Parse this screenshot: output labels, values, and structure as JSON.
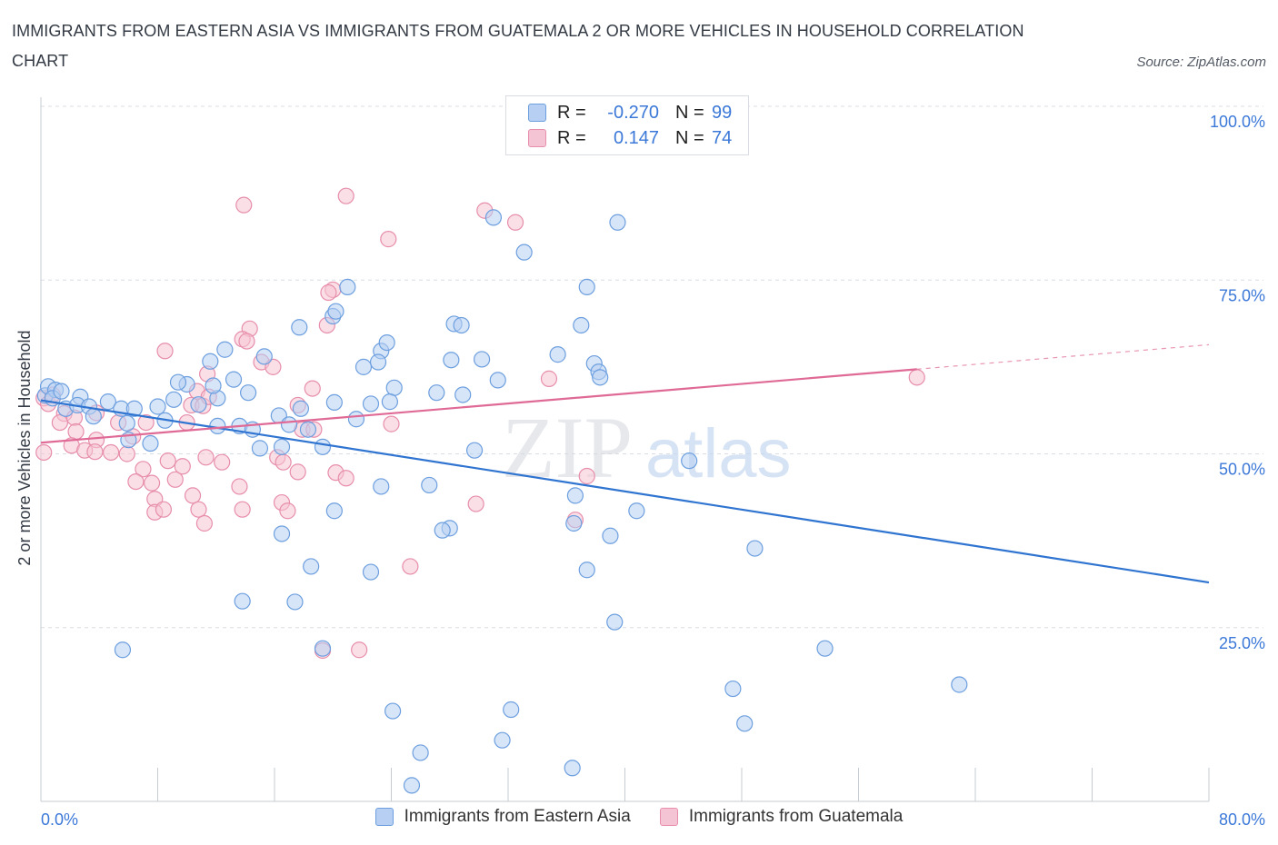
{
  "title": "IMMIGRANTS FROM EASTERN ASIA VS IMMIGRANTS FROM GUATEMALA 2 OR MORE VEHICLES IN HOUSEHOLD CORRELATION CHART",
  "source": "Source: ZipAtlas.com",
  "watermark": {
    "zip": "ZIP",
    "atlas": "atlas"
  },
  "legend_top": {
    "rows": [
      {
        "r_label": "R =",
        "r_value": "-0.270",
        "n_label": "N =",
        "n_value": "99"
      },
      {
        "r_label": "R =",
        "r_value": "0.147",
        "n_label": "N =",
        "n_value": "74"
      }
    ]
  },
  "colors": {
    "blue_fill": "#b6cff2",
    "blue_stroke": "#6d9fdf",
    "blue_line": "#2f74d0",
    "pink_fill": "#f5c4d4",
    "pink_stroke": "#e78eab",
    "pink_line": "#e06a96",
    "axis_label": "#3b78d8",
    "grid": "#d8dde4"
  },
  "chart_data": {
    "type": "scatter",
    "title": "IMMIGRANTS FROM EASTERN ASIA VS IMMIGRANTS FROM GUATEMALA 2 OR MORE VEHICLES IN HOUSEHOLD CORRELATION CHART",
    "xlabel": "",
    "ylabel": "2 or more Vehicles in Household",
    "xlim": [
      0,
      80
    ],
    "ylim": [
      0,
      100
    ],
    "x_tick_labels": [
      "0.0%",
      "80.0%"
    ],
    "y_tick_labels": [
      "100.0%",
      "75.0%",
      "50.0%",
      "25.0%"
    ],
    "y_ticks": [
      100,
      75,
      50,
      25
    ],
    "grid": true,
    "legend_placement": "bottom",
    "series": [
      {
        "name": "Immigrants from Eastern Asia",
        "R": -0.27,
        "N": 99,
        "trend": {
          "x": [
            0,
            80
          ],
          "y": [
            57.7,
            31.5
          ],
          "dashed_from_x": null
        },
        "points": [
          [
            0.3,
            58.4
          ],
          [
            0.5,
            59.7
          ],
          [
            1.0,
            59.2
          ],
          [
            0.8,
            58.0
          ],
          [
            1.4,
            59.0
          ],
          [
            2.7,
            58.2
          ],
          [
            1.7,
            56.5
          ],
          [
            2.5,
            57.0
          ],
          [
            3.3,
            56.8
          ],
          [
            4.6,
            57.5
          ],
          [
            5.5,
            56.5
          ],
          [
            3.6,
            55.4
          ],
          [
            6.4,
            56.5
          ],
          [
            5.9,
            54.4
          ],
          [
            8.0,
            56.8
          ],
          [
            9.1,
            57.8
          ],
          [
            8.5,
            54.8
          ],
          [
            7.5,
            51.5
          ],
          [
            6.0,
            52.0
          ],
          [
            10.0,
            60.0
          ],
          [
            10.8,
            57.1
          ],
          [
            12.1,
            58.0
          ],
          [
            11.8,
            59.8
          ],
          [
            13.2,
            60.7
          ],
          [
            14.2,
            58.8
          ],
          [
            9.4,
            60.3
          ],
          [
            11.6,
            63.3
          ],
          [
            12.6,
            65.0
          ],
          [
            15.3,
            64.0
          ],
          [
            12.1,
            54.0
          ],
          [
            13.6,
            54.0
          ],
          [
            14.5,
            53.5
          ],
          [
            16.3,
            55.5
          ],
          [
            17.8,
            56.5
          ],
          [
            16.5,
            51.0
          ],
          [
            15.0,
            50.8
          ],
          [
            17.0,
            54.2
          ],
          [
            18.3,
            53.5
          ],
          [
            20.1,
            57.4
          ],
          [
            21.6,
            55.0
          ],
          [
            22.6,
            57.2
          ],
          [
            24.2,
            59.5
          ],
          [
            23.9,
            57.5
          ],
          [
            19.3,
            51.0
          ],
          [
            22.1,
            62.5
          ],
          [
            23.3,
            64.8
          ],
          [
            23.7,
            66.0
          ],
          [
            23.1,
            63.2
          ],
          [
            20.0,
            69.8
          ],
          [
            17.7,
            68.2
          ],
          [
            20.2,
            70.5
          ],
          [
            21.0,
            74.0
          ],
          [
            28.3,
            68.7
          ],
          [
            28.8,
            68.5
          ],
          [
            28.1,
            63.5
          ],
          [
            28.9,
            58.5
          ],
          [
            27.1,
            58.8
          ],
          [
            30.2,
            63.6
          ],
          [
            31.3,
            60.6
          ],
          [
            29.7,
            50.5
          ],
          [
            37.9,
            63.0
          ],
          [
            37.0,
            68.5
          ],
          [
            35.4,
            64.3
          ],
          [
            38.2,
            61.8
          ],
          [
            33.1,
            79.0
          ],
          [
            31.0,
            84.0
          ],
          [
            37.4,
            74.0
          ],
          [
            38.3,
            61.0
          ],
          [
            39.5,
            83.3
          ],
          [
            44.4,
            49.0
          ],
          [
            36.6,
            44.0
          ],
          [
            40.8,
            41.8
          ],
          [
            39.0,
            38.2
          ],
          [
            36.5,
            40.0
          ],
          [
            37.4,
            33.3
          ],
          [
            28.0,
            39.3
          ],
          [
            27.5,
            39.0
          ],
          [
            26.6,
            45.5
          ],
          [
            23.3,
            45.3
          ],
          [
            22.6,
            33.0
          ],
          [
            20.1,
            41.8
          ],
          [
            18.5,
            33.8
          ],
          [
            16.5,
            38.5
          ],
          [
            13.8,
            28.8
          ],
          [
            17.4,
            28.7
          ],
          [
            5.6,
            21.8
          ],
          [
            19.3,
            22.0
          ],
          [
            24.1,
            13.0
          ],
          [
            26.0,
            7.0
          ],
          [
            25.4,
            2.3
          ],
          [
            32.2,
            13.2
          ],
          [
            31.6,
            8.8
          ],
          [
            36.4,
            4.8
          ],
          [
            39.3,
            25.8
          ],
          [
            48.9,
            36.4
          ],
          [
            53.7,
            22.0
          ],
          [
            48.2,
            11.2
          ],
          [
            47.4,
            16.2
          ],
          [
            62.9,
            16.8
          ]
        ]
      },
      {
        "name": "Immigrants from Guatemala",
        "R": 0.147,
        "N": 74,
        "trend": {
          "x": [
            0,
            80
          ],
          "y": [
            51.6,
            65.7
          ],
          "dashed_from_x": 60
        },
        "points": [
          [
            0.2,
            58.0
          ],
          [
            0.5,
            57.2
          ],
          [
            0.8,
            58.5
          ],
          [
            1.6,
            55.8
          ],
          [
            1.3,
            54.5
          ],
          [
            2.3,
            55.2
          ],
          [
            2.4,
            53.2
          ],
          [
            2.1,
            51.2
          ],
          [
            3.8,
            55.9
          ],
          [
            3.8,
            52.0
          ],
          [
            3.0,
            50.5
          ],
          [
            3.7,
            50.3
          ],
          [
            4.8,
            50.2
          ],
          [
            5.3,
            54.5
          ],
          [
            5.9,
            50.0
          ],
          [
            6.3,
            52.5
          ],
          [
            7.2,
            54.5
          ],
          [
            7.0,
            47.8
          ],
          [
            7.6,
            45.8
          ],
          [
            6.5,
            46.0
          ],
          [
            7.8,
            43.5
          ],
          [
            7.8,
            41.6
          ],
          [
            8.7,
            49.0
          ],
          [
            9.7,
            48.2
          ],
          [
            9.2,
            46.3
          ],
          [
            8.4,
            42.0
          ],
          [
            10.3,
            57.0
          ],
          [
            10.0,
            54.5
          ],
          [
            10.7,
            59.0
          ],
          [
            11.1,
            56.9
          ],
          [
            10.4,
            44.0
          ],
          [
            10.8,
            42.0
          ],
          [
            11.2,
            40.0
          ],
          [
            11.3,
            49.5
          ],
          [
            11.4,
            61.5
          ],
          [
            11.5,
            58.2
          ],
          [
            12.4,
            48.8
          ],
          [
            13.6,
            45.3
          ],
          [
            13.8,
            42.0
          ],
          [
            15.1,
            63.2
          ],
          [
            15.9,
            62.5
          ],
          [
            16.2,
            49.5
          ],
          [
            16.6,
            48.8
          ],
          [
            16.5,
            43.0
          ],
          [
            16.9,
            41.8
          ],
          [
            17.6,
            57.0
          ],
          [
            17.9,
            53.5
          ],
          [
            17.6,
            47.4
          ],
          [
            18.6,
            59.4
          ],
          [
            18.7,
            53.5
          ],
          [
            19.6,
            68.5
          ],
          [
            20.0,
            73.6
          ],
          [
            19.7,
            73.2
          ],
          [
            14.3,
            68.0
          ],
          [
            13.8,
            66.5
          ],
          [
            14.1,
            66.2
          ],
          [
            8.5,
            64.8
          ],
          [
            13.9,
            85.8
          ],
          [
            20.9,
            87.1
          ],
          [
            23.8,
            80.9
          ],
          [
            30.4,
            85.0
          ],
          [
            32.5,
            83.3
          ],
          [
            20.2,
            47.3
          ],
          [
            20.9,
            46.5
          ],
          [
            24.0,
            54.3
          ],
          [
            34.8,
            60.8
          ],
          [
            37.4,
            46.8
          ],
          [
            36.6,
            40.5
          ],
          [
            29.8,
            42.8
          ],
          [
            25.3,
            33.8
          ],
          [
            19.3,
            21.7
          ],
          [
            21.8,
            21.8
          ],
          [
            0.2,
            50.2
          ],
          [
            60.0,
            61.0
          ]
        ]
      }
    ]
  }
}
